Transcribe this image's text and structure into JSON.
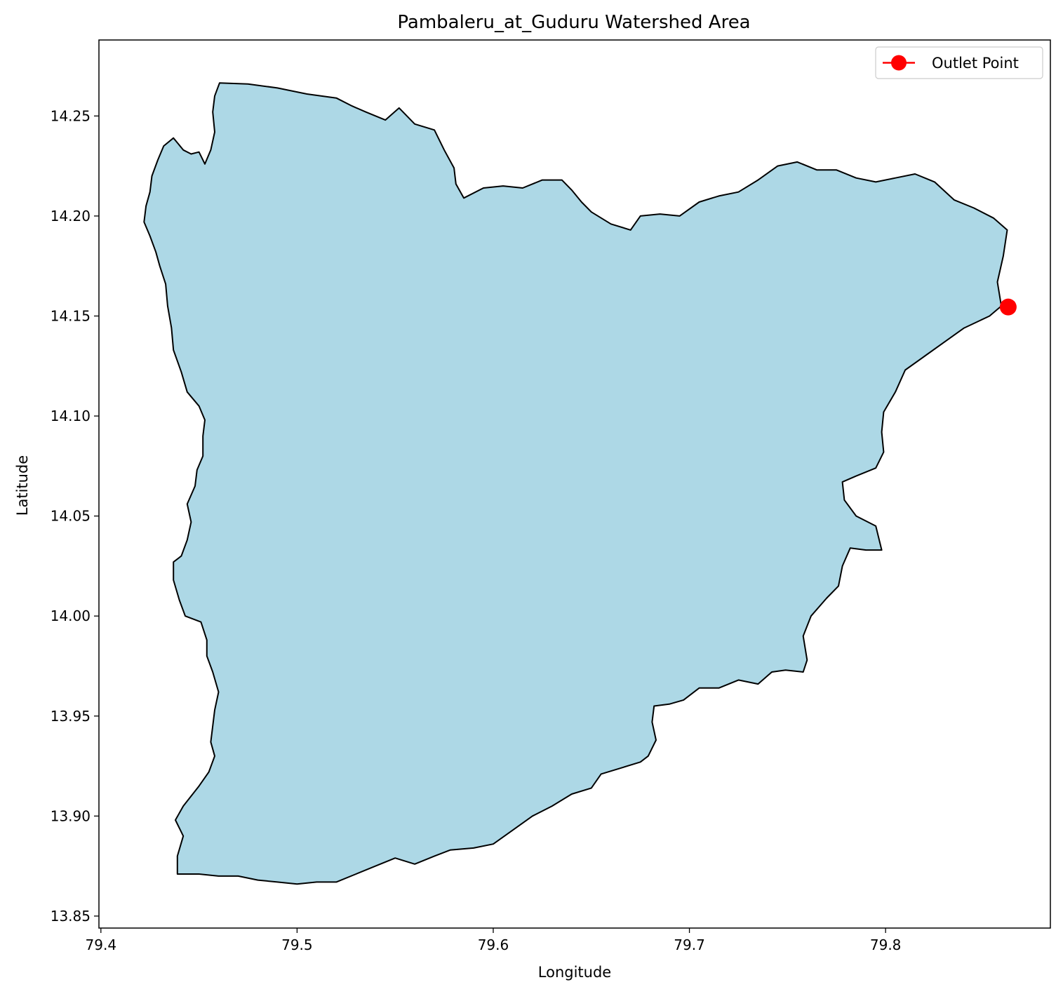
{
  "chart_data": {
    "type": "map",
    "title": "Pambaleru_at_Guduru Watershed Area",
    "xlabel": "Longitude",
    "ylabel": "Latitude",
    "xlim": [
      79.399,
      79.884
    ],
    "ylim": [
      13.844,
      14.288
    ],
    "xticks": [
      79.4,
      79.5,
      79.6,
      79.7,
      79.8
    ],
    "yticks": [
      13.85,
      13.9,
      13.95,
      14.0,
      14.05,
      14.1,
      14.15,
      14.2,
      14.25
    ],
    "xtick_labels": [
      "79.4",
      "79.5",
      "79.6",
      "79.7",
      "79.8"
    ],
    "ytick_labels": [
      "13.85",
      "13.90",
      "13.95",
      "14.00",
      "14.05",
      "14.10",
      "14.15",
      "14.20",
      "14.25"
    ],
    "grid": false,
    "legend": {
      "placement": "top-right",
      "entries": [
        {
          "label": "Outlet Point",
          "color": "#ff0000",
          "marker": "circle"
        }
      ]
    },
    "watershed": {
      "fill": "#add8e6",
      "edge": "#000000",
      "boundary": [
        [
          79.4605,
          14.2665
        ],
        [
          79.475,
          14.266
        ],
        [
          79.49,
          14.264
        ],
        [
          79.505,
          14.261
        ],
        [
          79.52,
          14.259
        ],
        [
          79.528,
          14.255
        ],
        [
          79.535,
          14.252
        ],
        [
          79.545,
          14.248
        ],
        [
          79.552,
          14.254
        ],
        [
          79.56,
          14.246
        ],
        [
          79.57,
          14.243
        ],
        [
          79.575,
          14.233
        ],
        [
          79.58,
          14.224
        ],
        [
          79.581,
          14.216
        ],
        [
          79.585,
          14.209
        ],
        [
          79.595,
          14.214
        ],
        [
          79.605,
          14.215
        ],
        [
          79.615,
          14.214
        ],
        [
          79.625,
          14.218
        ],
        [
          79.635,
          14.218
        ],
        [
          79.64,
          14.213
        ],
        [
          79.645,
          14.207
        ],
        [
          79.65,
          14.202
        ],
        [
          79.66,
          14.196
        ],
        [
          79.67,
          14.193
        ],
        [
          79.675,
          14.2
        ],
        [
          79.685,
          14.201
        ],
        [
          79.695,
          14.2
        ],
        [
          79.705,
          14.207
        ],
        [
          79.715,
          14.21
        ],
        [
          79.725,
          14.212
        ],
        [
          79.735,
          14.218
        ],
        [
          79.745,
          14.225
        ],
        [
          79.755,
          14.227
        ],
        [
          79.765,
          14.223
        ],
        [
          79.775,
          14.223
        ],
        [
          79.785,
          14.219
        ],
        [
          79.795,
          14.217
        ],
        [
          79.805,
          14.219
        ],
        [
          79.815,
          14.221
        ],
        [
          79.825,
          14.217
        ],
        [
          79.835,
          14.208
        ],
        [
          79.845,
          14.204
        ],
        [
          79.855,
          14.199
        ],
        [
          79.862,
          14.193
        ],
        [
          79.86,
          14.18
        ],
        [
          79.857,
          14.167
        ],
        [
          79.859,
          14.155
        ],
        [
          79.853,
          14.15
        ],
        [
          79.84,
          14.144
        ],
        [
          79.83,
          14.137
        ],
        [
          79.82,
          14.13
        ],
        [
          79.81,
          14.123
        ],
        [
          79.805,
          14.112
        ],
        [
          79.799,
          14.102
        ],
        [
          79.798,
          14.092
        ],
        [
          79.799,
          14.082
        ],
        [
          79.795,
          14.074
        ],
        [
          79.785,
          14.07
        ],
        [
          79.778,
          14.067
        ],
        [
          79.779,
          14.058
        ],
        [
          79.785,
          14.05
        ],
        [
          79.795,
          14.045
        ],
        [
          79.798,
          14.033
        ],
        [
          79.79,
          14.033
        ],
        [
          79.782,
          14.034
        ],
        [
          79.778,
          14.025
        ],
        [
          79.776,
          14.015
        ],
        [
          79.77,
          14.009
        ],
        [
          79.762,
          14.0
        ],
        [
          79.758,
          13.99
        ],
        [
          79.76,
          13.978
        ],
        [
          79.758,
          13.972
        ],
        [
          79.749,
          13.973
        ],
        [
          79.742,
          13.972
        ],
        [
          79.735,
          13.966
        ],
        [
          79.725,
          13.968
        ],
        [
          79.715,
          13.964
        ],
        [
          79.705,
          13.964
        ],
        [
          79.697,
          13.958
        ],
        [
          79.69,
          13.956
        ],
        [
          79.682,
          13.955
        ],
        [
          79.681,
          13.947
        ],
        [
          79.683,
          13.938
        ],
        [
          79.679,
          13.93
        ],
        [
          79.675,
          13.927
        ],
        [
          79.665,
          13.924
        ],
        [
          79.655,
          13.921
        ],
        [
          79.65,
          13.914
        ],
        [
          79.64,
          13.911
        ],
        [
          79.63,
          13.905
        ],
        [
          79.62,
          13.9
        ],
        [
          79.61,
          13.893
        ],
        [
          79.6,
          13.886
        ],
        [
          79.59,
          13.884
        ],
        [
          79.578,
          13.883
        ],
        [
          79.57,
          13.88
        ],
        [
          79.56,
          13.876
        ],
        [
          79.55,
          13.879
        ],
        [
          79.54,
          13.875
        ],
        [
          79.53,
          13.871
        ],
        [
          79.52,
          13.867
        ],
        [
          79.51,
          13.867
        ],
        [
          79.5,
          13.866
        ],
        [
          79.49,
          13.867
        ],
        [
          79.48,
          13.868
        ],
        [
          79.47,
          13.87
        ],
        [
          79.46,
          13.87
        ],
        [
          79.45,
          13.871
        ],
        [
          79.439,
          13.871
        ],
        [
          79.439,
          13.88
        ],
        [
          79.442,
          13.89
        ],
        [
          79.438,
          13.898
        ],
        [
          79.442,
          13.905
        ],
        [
          79.45,
          13.915
        ],
        [
          79.455,
          13.922
        ],
        [
          79.458,
          13.93
        ],
        [
          79.456,
          13.937
        ],
        [
          79.457,
          13.945
        ],
        [
          79.458,
          13.953
        ],
        [
          79.46,
          13.962
        ],
        [
          79.457,
          13.972
        ],
        [
          79.454,
          13.98
        ],
        [
          79.454,
          13.988
        ],
        [
          79.451,
          13.997
        ],
        [
          79.443,
          14.0
        ],
        [
          79.44,
          14.008
        ],
        [
          79.437,
          14.018
        ],
        [
          79.437,
          14.027
        ],
        [
          79.441,
          14.03
        ],
        [
          79.444,
          14.038
        ],
        [
          79.446,
          14.047
        ],
        [
          79.444,
          14.056
        ],
        [
          79.448,
          14.065
        ],
        [
          79.449,
          14.073
        ],
        [
          79.452,
          14.08
        ],
        [
          79.452,
          14.09
        ],
        [
          79.453,
          14.098
        ],
        [
          79.45,
          14.105
        ],
        [
          79.444,
          14.112
        ],
        [
          79.441,
          14.122
        ],
        [
          79.437,
          14.133
        ],
        [
          79.436,
          14.144
        ],
        [
          79.434,
          14.155
        ],
        [
          79.433,
          14.166
        ],
        [
          79.43,
          14.175
        ],
        [
          79.428,
          14.182
        ],
        [
          79.425,
          14.19
        ],
        [
          79.422,
          14.197
        ],
        [
          79.423,
          14.205
        ],
        [
          79.425,
          14.212
        ],
        [
          79.426,
          14.22
        ],
        [
          79.429,
          14.228
        ],
        [
          79.432,
          14.235
        ],
        [
          79.437,
          14.239
        ],
        [
          79.442,
          14.233
        ],
        [
          79.446,
          14.231
        ],
        [
          79.45,
          14.232
        ],
        [
          79.453,
          14.226
        ],
        [
          79.456,
          14.233
        ],
        [
          79.458,
          14.242
        ],
        [
          79.457,
          14.252
        ],
        [
          79.458,
          14.26
        ]
      ]
    },
    "outlet_point": {
      "name": "Outlet Point",
      "x": 79.8625,
      "y": 14.1545,
      "color": "#ff0000"
    }
  }
}
